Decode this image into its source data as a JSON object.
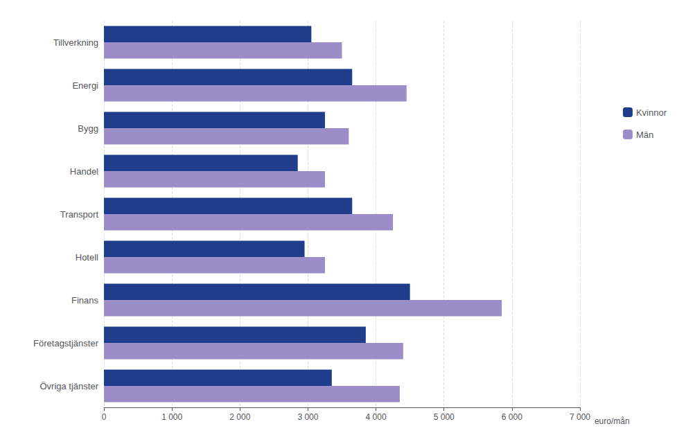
{
  "chart_data": {
    "type": "bar",
    "orientation": "horizontal",
    "categories": [
      "Tillverkning",
      "Energi",
      "Bygg",
      "Handel",
      "Transport",
      "Hotell",
      "Finans",
      "Företagstjänster",
      "Övriga tjänster"
    ],
    "series": [
      {
        "name": "Kvinnor",
        "color": "#1F3D8B",
        "values": [
          3050,
          3650,
          3250,
          2850,
          3650,
          2950,
          4500,
          3850,
          3350
        ]
      },
      {
        "name": "Män",
        "color": "#9B8DC8",
        "values": [
          3500,
          4450,
          3600,
          3250,
          4250,
          3250,
          5850,
          4400,
          4350
        ]
      }
    ],
    "xlabel": "euro/mån",
    "xlim": [
      0,
      7000
    ],
    "xticks": [
      0,
      {
        "value": 1000,
        "label": "1 000"
      },
      {
        "value": 2000,
        "label": "2 000"
      },
      {
        "value": 3000,
        "label": "3 000"
      },
      {
        "value": 4000,
        "label": "4 000"
      },
      {
        "value": 5000,
        "label": "5 000"
      },
      {
        "value": 6000,
        "label": "6 000"
      },
      {
        "value": 7000,
        "label": "7 000"
      }
    ],
    "grid": true,
    "legend": "right"
  }
}
